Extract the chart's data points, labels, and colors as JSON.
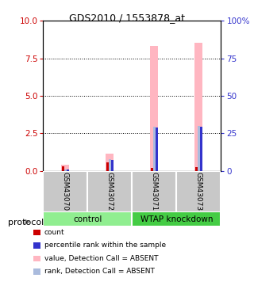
{
  "title": "GDS2010 / 1553878_at",
  "samples": [
    "GSM43070",
    "GSM43072",
    "GSM43071",
    "GSM43073"
  ],
  "ylim_left": [
    0,
    10
  ],
  "ylim_right": [
    0,
    100
  ],
  "yticks_left": [
    0,
    2.5,
    5,
    7.5,
    10
  ],
  "yticks_right": [
    0,
    25,
    50,
    75,
    100
  ],
  "value_absent": [
    0.42,
    1.15,
    8.3,
    8.55
  ],
  "rank_absent": [
    0.07,
    0.75,
    2.92,
    2.97
  ],
  "count": [
    0.32,
    0.55,
    0.18,
    0.22
  ],
  "percentile_rank": [
    0.08,
    0.72,
    2.88,
    2.94
  ],
  "count_color": "#CC0000",
  "percentile_color": "#3333CC",
  "value_absent_color": "#FFB6C1",
  "rank_absent_color": "#AABBDD",
  "tick_label_color_left": "#CC0000",
  "tick_label_color_right": "#3333CC",
  "legend_items": [
    {
      "label": "count",
      "color": "#CC0000"
    },
    {
      "label": "percentile rank within the sample",
      "color": "#3333CC"
    },
    {
      "label": "value, Detection Call = ABSENT",
      "color": "#FFB6C1"
    },
    {
      "label": "rank, Detection Call = ABSENT",
      "color": "#AABBDD"
    }
  ],
  "sample_bg_color": "#C8C8C8",
  "protocol_label": "protocol",
  "group_control_color": "#90EE90",
  "group_wtap_color": "#44CC44"
}
